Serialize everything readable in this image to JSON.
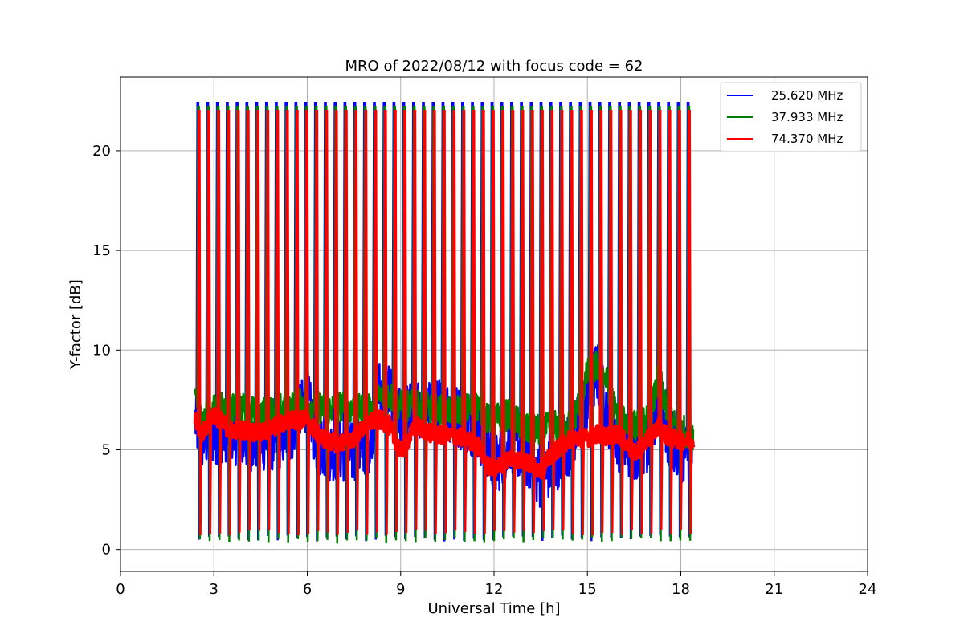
{
  "chart_data": {
    "type": "line",
    "title": "MRO of 2022/08/12 with focus code = 62",
    "xlabel": "Universal Time [h]",
    "ylabel": "Y-factor [dB]",
    "xlim": [
      0,
      24
    ],
    "ylim": [
      -1.1,
      23.7
    ],
    "xticks": [
      0,
      3,
      6,
      9,
      12,
      15,
      18,
      21,
      24
    ],
    "yticks": [
      0,
      5,
      10,
      15,
      20
    ],
    "xtick_labels": [
      "0",
      "3",
      "6",
      "9",
      "12",
      "15",
      "18",
      "21",
      "24"
    ],
    "ytick_labels": [
      "0",
      "5",
      "10",
      "15",
      "20"
    ],
    "grid": true,
    "legend_position": "top-right",
    "data_range_x": [
      2.4,
      18.4
    ],
    "calibration_spikes": {
      "start": 2.5,
      "end": 18.25,
      "count": 51,
      "peak_values": {
        "25.620 MHz": 22.4,
        "37.933 MHz": 22.2,
        "74.370 MHz": 22.0
      },
      "trough_values": {
        "25.620 MHz": 0.4,
        "37.933 MHz": 0.3,
        "74.370 MHz": 0.7
      }
    },
    "series": [
      {
        "name": "25.620 MHz",
        "color": "#0000ff",
        "baseline": {
          "x": [
            2.4,
            2.6,
            3.0,
            3.5,
            4.0,
            4.5,
            5.0,
            5.5,
            6.0,
            6.3,
            6.6,
            7.0,
            7.5,
            8.0,
            8.3,
            8.6,
            9.0,
            9.5,
            10.0,
            10.5,
            11.0,
            11.5,
            11.8,
            12.0,
            12.5,
            13.0,
            13.5,
            14.0,
            14.5,
            15.0,
            15.3,
            15.6,
            16.0,
            16.5,
            17.0,
            17.3,
            17.6,
            18.0,
            18.4
          ],
          "y": [
            6.5,
            5.5,
            5.8,
            6.0,
            5.5,
            5.5,
            5.5,
            6.0,
            7.5,
            5.5,
            5.0,
            5.0,
            4.8,
            5.5,
            8.0,
            8.0,
            6.5,
            7.0,
            7.0,
            7.0,
            6.5,
            6.0,
            5.0,
            4.0,
            5.5,
            4.8,
            3.5,
            4.5,
            5.5,
            7.5,
            9.0,
            7.0,
            5.5,
            5.0,
            5.5,
            8.0,
            5.5,
            5.0,
            4.8
          ]
        }
      },
      {
        "name": "37.933 MHz",
        "color": "#008000",
        "baseline": {
          "x": [
            2.4,
            2.6,
            3.0,
            3.5,
            4.0,
            4.5,
            5.0,
            5.5,
            6.0,
            6.3,
            6.6,
            7.0,
            7.5,
            8.0,
            8.3,
            8.6,
            9.0,
            9.5,
            10.0,
            10.5,
            11.0,
            11.5,
            11.8,
            12.0,
            12.5,
            13.0,
            13.5,
            14.0,
            14.5,
            15.0,
            15.3,
            15.6,
            16.0,
            16.5,
            17.0,
            17.3,
            17.6,
            18.0,
            18.4
          ],
          "y": [
            8.0,
            6.5,
            7.0,
            7.2,
            7.0,
            6.8,
            7.0,
            7.2,
            7.3,
            7.2,
            7.0,
            7.2,
            7.0,
            7.0,
            7.6,
            7.8,
            7.2,
            7.2,
            7.0,
            7.0,
            7.0,
            7.2,
            6.5,
            6.5,
            6.8,
            6.0,
            6.0,
            6.2,
            6.2,
            8.8,
            9.2,
            8.5,
            6.5,
            6.2,
            6.5,
            8.8,
            6.5,
            6.0,
            5.8
          ]
        }
      },
      {
        "name": "74.370 MHz",
        "color": "#ff0000",
        "baseline": {
          "x": [
            2.4,
            2.6,
            3.0,
            3.5,
            4.0,
            4.5,
            5.0,
            5.5,
            6.0,
            6.3,
            6.6,
            7.0,
            7.5,
            8.0,
            8.3,
            8.6,
            9.0,
            9.5,
            10.0,
            10.5,
            11.0,
            11.5,
            11.8,
            12.0,
            12.5,
            13.0,
            13.5,
            14.0,
            14.5,
            15.0,
            15.3,
            15.6,
            16.0,
            16.5,
            17.0,
            17.3,
            17.6,
            18.0,
            18.4
          ],
          "y": [
            6.5,
            5.8,
            6.8,
            6.0,
            6.0,
            5.8,
            6.2,
            6.5,
            6.5,
            5.8,
            5.5,
            5.3,
            5.6,
            6.4,
            6.5,
            6.3,
            4.9,
            6.2,
            5.8,
            5.7,
            5.6,
            5.2,
            4.2,
            4.0,
            4.6,
            4.4,
            4.0,
            5.0,
            5.6,
            5.6,
            5.8,
            5.7,
            5.8,
            4.8,
            5.6,
            6.2,
            5.6,
            5.5,
            5.4
          ]
        }
      }
    ]
  }
}
